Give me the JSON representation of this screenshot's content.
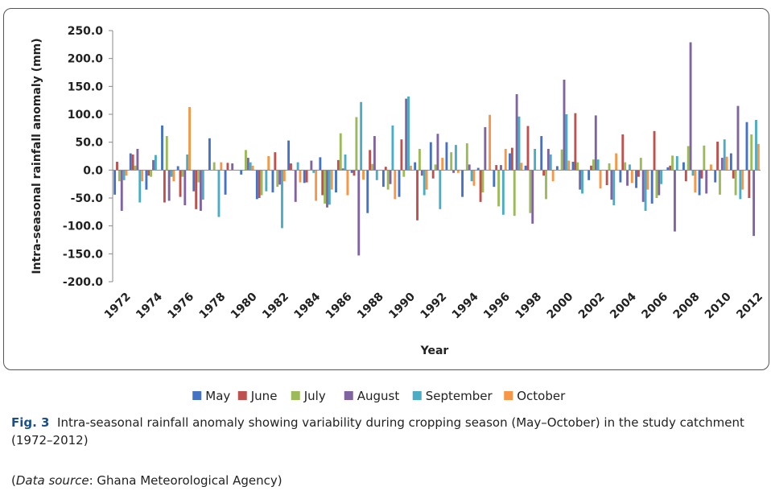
{
  "chart_data": {
    "type": "bar",
    "ylabel": "Intra-seasonal rainfall anomaly (mm)",
    "xlabel": "Year",
    "categories": [
      "1972",
      null,
      "1974",
      null,
      "1976",
      null,
      "1978",
      null,
      "1980",
      null,
      "1982",
      null,
      "1984",
      null,
      "1986",
      null,
      "1988",
      null,
      "1990",
      null,
      "1992",
      null,
      "1994",
      null,
      "1996",
      null,
      "1998",
      null,
      "2000",
      null,
      "2002",
      null,
      "2004",
      null,
      "2006",
      null,
      "2008",
      null,
      "2010",
      null,
      "2012"
    ],
    "series": [
      {
        "name": "May",
        "color": "#4472c4",
        "values": [
          -44,
          30,
          -35,
          80,
          7,
          -38,
          57,
          -44,
          -8,
          -52,
          -40,
          53,
          -23,
          23,
          -40,
          -5,
          -77,
          -30,
          -48,
          14,
          50,
          50,
          -48,
          4,
          -30,
          30,
          8,
          61,
          7,
          15,
          -18,
          0,
          -22,
          -32,
          -60,
          5,
          14,
          -45,
          -22,
          30,
          86
        ]
      },
      {
        "name": "June",
        "color": "#c0504d",
        "values": [
          15,
          28,
          -10,
          -58,
          -48,
          -70,
          0,
          13,
          0,
          -50,
          32,
          12,
          -22,
          -45,
          18,
          -10,
          36,
          6,
          55,
          -90,
          -15,
          0,
          0,
          -57,
          9,
          40,
          79,
          -10,
          0,
          102,
          8,
          -27,
          64,
          -12,
          70,
          8,
          -20,
          -15,
          51,
          -15,
          -50
        ]
      },
      {
        "name": "July",
        "color": "#9bbb59",
        "values": [
          -20,
          8,
          -12,
          61,
          -12,
          -22,
          14,
          0,
          36,
          -45,
          -30,
          0,
          0,
          -60,
          66,
          95,
          11,
          -35,
          -12,
          38,
          10,
          32,
          48,
          -40,
          -65,
          -82,
          -77,
          -52,
          37,
          14,
          19,
          12,
          14,
          22,
          -50,
          26,
          43,
          44,
          -44,
          -45,
          64
        ]
      },
      {
        "name": "August",
        "color": "#8064a2",
        "values": [
          -73,
          38,
          18,
          -55,
          -63,
          -73,
          0,
          12,
          22,
          0,
          -26,
          -57,
          17,
          -67,
          3,
          -153,
          61,
          -25,
          128,
          -10,
          65,
          -5,
          10,
          77,
          9,
          136,
          -96,
          38,
          162,
          -35,
          98,
          -53,
          -28,
          -57,
          -45,
          -110,
          229,
          -42,
          22,
          115,
          -118
        ]
      },
      {
        "name": "September",
        "color": "#4bacc6",
        "values": [
          -18,
          -58,
          27,
          -12,
          28,
          -53,
          -84,
          0,
          14,
          -38,
          -104,
          14,
          -5,
          -62,
          28,
          122,
          -18,
          80,
          132,
          -45,
          -70,
          45,
          -20,
          0,
          -80,
          96,
          38,
          28,
          100,
          -42,
          19,
          -63,
          10,
          -73,
          -25,
          25,
          -10,
          0,
          55,
          -52,
          90
        ]
      },
      {
        "name": "October",
        "color": "#f79646",
        "values": [
          -10,
          -20,
          0,
          -20,
          113,
          0,
          14,
          0,
          8,
          25,
          -20,
          -22,
          -55,
          -35,
          -45,
          -17,
          0,
          -52,
          8,
          -35,
          22,
          -5,
          -28,
          99,
          38,
          13,
          0,
          -20,
          17,
          0,
          -33,
          30,
          -23,
          -35,
          0,
          0,
          -40,
          10,
          24,
          -35,
          47
        ]
      }
    ],
    "ylim": [
      -200,
      250
    ],
    "yticks": [
      {
        "value": -200,
        "label": "-200.0"
      },
      {
        "value": -150,
        "label": "-150.0"
      },
      {
        "value": -100,
        "label": "-100.0"
      },
      {
        "value": -50,
        "label": "-50.0"
      },
      {
        "value": 0,
        "label": "0.0"
      },
      {
        "value": 50,
        "label": "50.0"
      },
      {
        "value": 100,
        "label": "100.0"
      },
      {
        "value": 150,
        "label": "150.0"
      },
      {
        "value": 200,
        "label": "200.0"
      },
      {
        "value": 250,
        "label": "250.0"
      }
    ],
    "grid": false,
    "legend": "bottom"
  },
  "caption": {
    "label": "Fig. 3",
    "text": "Intra-seasonal rainfall anomaly showing variability during cropping season (May–October) in the study catchment (1972–2012)"
  },
  "source": [
    "(",
    "Data source",
    ": Ghana Meteorological Agency)"
  ]
}
